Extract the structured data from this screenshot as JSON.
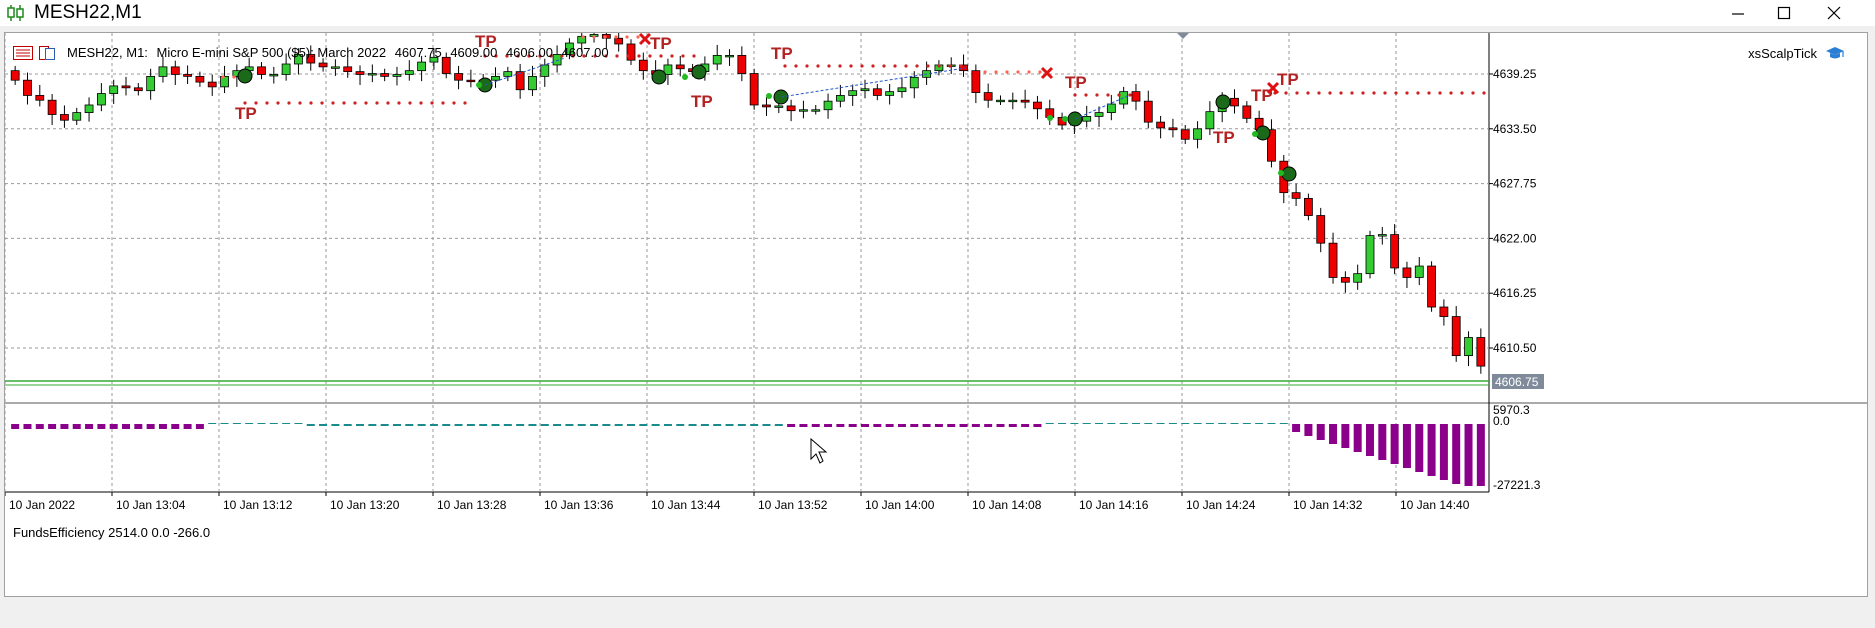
{
  "window": {
    "title": "MESH22,M1",
    "controls": [
      "minimize",
      "maximize",
      "close"
    ]
  },
  "chart": {
    "symbol_info": {
      "symbol": "MESH22, M1:",
      "description": "Micro E-mini S&P 500 ($5): March 2022",
      "open": "4607.75",
      "high": "4609.00",
      "low": "4606.00",
      "close": "4607.00"
    },
    "expert_name": "xsScalpTick",
    "price_axis": [
      "4639.25",
      "4633.50",
      "4627.75",
      "4622.00",
      "4616.25",
      "4610.50"
    ],
    "current_price": "4606.75",
    "trade_label": "TP",
    "colors": {
      "bull": "#33cc33",
      "bear": "#ee0000",
      "current_line": "#33aa33",
      "current_price_bg": "#7f8b9a",
      "indicator_pos": "#1a8a8a",
      "indicator_neg": "#8b008b",
      "tp_label": "#b22222"
    }
  },
  "indicator": {
    "label": "FundsEfficiency 2514.0 0.0 -266.0",
    "axis_top": "5970.3",
    "axis_zero": "0.0",
    "axis_bottom": "-27221.3"
  },
  "time_axis": [
    "10 Jan 2022",
    "10 Jan 13:04",
    "10 Jan 13:12",
    "10 Jan 13:20",
    "10 Jan 13:28",
    "10 Jan 13:36",
    "10 Jan 13:44",
    "10 Jan 13:52",
    "10 Jan 14:00",
    "10 Jan 14:08",
    "10 Jan 14:16",
    "10 Jan 14:24",
    "10 Jan 14:32",
    "10 Jan 14:40"
  ],
  "chart_data": {
    "type": "candlestick",
    "y_axis_ticks": [
      4639.25,
      4633.5,
      4627.75,
      4622.0,
      4616.25,
      4610.5
    ],
    "current_price": 4606.75,
    "closes": [
      4638.6,
      4637.0,
      4636.5,
      4635.0,
      4634.4,
      4635.2,
      4636.0,
      4637.2,
      4638.0,
      4637.8,
      4637.5,
      4639.0,
      4640.0,
      4639.2,
      4639.0,
      4638.4,
      4637.9,
      4639.0,
      4639.6,
      4640.0,
      4639.2,
      4639.2,
      4640.3,
      4641.3,
      4640.4,
      4640.0,
      4640.0,
      4639.5,
      4639.2,
      4639.3,
      4639.0,
      4639.2,
      4639.6,
      4640.5,
      4641.0,
      4639.3,
      4638.6,
      4638.5,
      4638.6,
      4639.0,
      4639.5,
      4637.6,
      4639.0,
      4640.2,
      4641.3,
      4642.5,
      4643.2,
      4643.4,
      4643.0,
      4642.4,
      4640.7,
      4639.6,
      4639.2,
      4640.2,
      4639.8,
      4639.5,
      4640.3,
      4641.2,
      4641.2,
      4639.3,
      4636.0,
      4635.8,
      4635.9,
      4635.4,
      4635.5,
      4635.5,
      4636.4,
      4637.0,
      4637.5,
      4637.7,
      4637.0,
      4637.4,
      4637.8,
      4638.9,
      4639.6,
      4640.2,
      4640.2,
      4639.6,
      4637.3,
      4636.5,
      4636.5,
      4636.5,
      4636.3,
      4635.6,
      4634.7,
      4633.9,
      4634.3,
      4634.8,
      4635.2,
      4636.1,
      4637.4,
      4636.4,
      4634.2,
      4633.6,
      4633.4,
      4632.4,
      4633.5,
      4635.3,
      4636.7,
      4635.9,
      4634.6,
      4633.4,
      4630.1,
      4626.8,
      4626.2,
      4624.4,
      4621.5,
      4617.9,
      4617.4,
      4618.3,
      4622.3,
      4622.4,
      4618.9,
      4617.9,
      4619.1,
      4614.8,
      4613.8,
      4609.7,
      4611.6,
      4608.6
    ]
  }
}
